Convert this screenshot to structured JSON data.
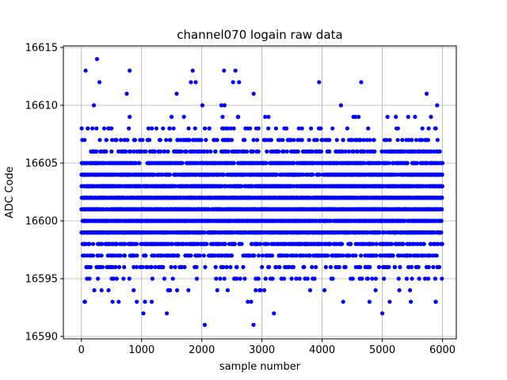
{
  "chart_data": {
    "type": "scatter",
    "title": "channel070 logain raw data",
    "xlabel": "sample number",
    "ylabel": "ADC Code",
    "xlim": [
      -300,
      6230
    ],
    "ylim": [
      16590,
      16615
    ],
    "xticks": [
      0,
      1000,
      2000,
      3000,
      4000,
      5000,
      6000
    ],
    "yticks": [
      16590,
      16595,
      16600,
      16605,
      16610,
      16615
    ],
    "grid": true,
    "marker_color": "#0000ff",
    "n_samples": 6000,
    "distribution": {
      "center": 16601.5,
      "std": 2.7,
      "min": 16591,
      "max": 16614
    },
    "notable_points": [
      {
        "x": 260,
        "y": 16614
      },
      {
        "x": 70,
        "y": 16613
      },
      {
        "x": 800,
        "y": 16613
      },
      {
        "x": 1850,
        "y": 16613
      },
      {
        "x": 2370,
        "y": 16613
      },
      {
        "x": 2560,
        "y": 16613
      },
      {
        "x": 300,
        "y": 16612
      },
      {
        "x": 1820,
        "y": 16612
      },
      {
        "x": 1900,
        "y": 16612
      },
      {
        "x": 2520,
        "y": 16612
      },
      {
        "x": 2620,
        "y": 16612
      },
      {
        "x": 3950,
        "y": 16612
      },
      {
        "x": 4650,
        "y": 16612
      },
      {
        "x": 2050,
        "y": 16591
      },
      {
        "x": 2860,
        "y": 16591
      },
      {
        "x": 1030,
        "y": 16592
      },
      {
        "x": 1420,
        "y": 16592
      },
      {
        "x": 3200,
        "y": 16592
      },
      {
        "x": 5000,
        "y": 16592
      },
      {
        "x": 60,
        "y": 16593
      },
      {
        "x": 920,
        "y": 16593
      },
      {
        "x": 2820,
        "y": 16593
      },
      {
        "x": 4350,
        "y": 16593
      },
      {
        "x": 5890,
        "y": 16593
      }
    ]
  }
}
